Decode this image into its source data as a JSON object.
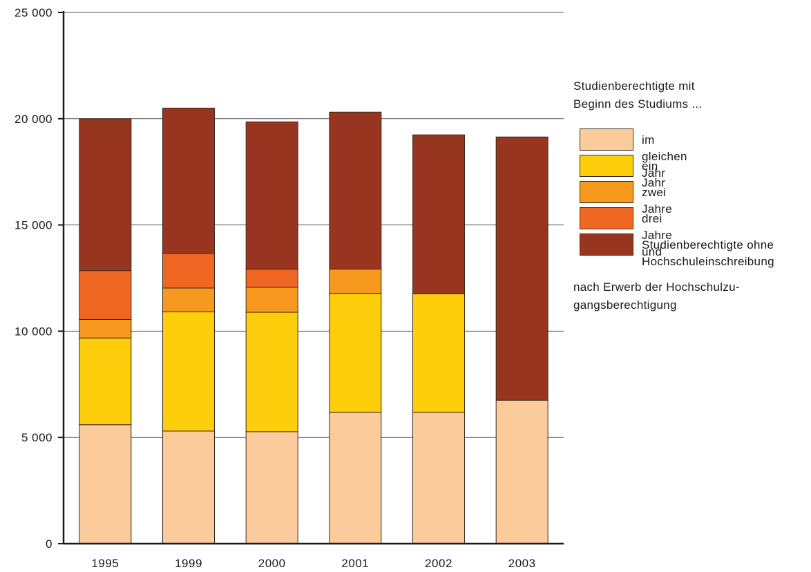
{
  "chart_data": {
    "type": "bar",
    "stacked": true,
    "categories": [
      "1995",
      "1999",
      "2000",
      "2001",
      "2002",
      "2003"
    ],
    "series": [
      {
        "name": "im gleichen Jahr",
        "color": "#fbcb9c",
        "values": [
          5600,
          5300,
          5270,
          6180,
          6180,
          6750
        ]
      },
      {
        "name": "ein Jahr",
        "color": "#fecd0b",
        "values": [
          4080,
          5610,
          5620,
          5600,
          5580,
          0
        ]
      },
      {
        "name": "zwei Jahre",
        "color": "#f6991e",
        "values": [
          870,
          1120,
          1180,
          1140,
          0,
          0
        ]
      },
      {
        "name": "drei Jahre und",
        "color": "#f06724",
        "values": [
          2300,
          1630,
          850,
          0,
          0,
          0
        ]
      },
      {
        "name": "Studienberechtigte ohne\nHochschuleinschreibung",
        "color": "#973520",
        "values": [
          7150,
          6840,
          6930,
          7390,
          7480,
          12390
        ]
      }
    ],
    "ylim": [
      0,
      25000
    ],
    "yticks": [
      0,
      5000,
      10000,
      15000,
      20000,
      25000
    ],
    "ytick_labels": [
      "0",
      "5 000",
      "10 000",
      "15 000",
      "20 000",
      "25 000"
    ],
    "grid": true,
    "legend_title": "Studienberechtigte mit\nBeginn des Studiums ...",
    "legend_note": "nach Erwerb der Hochschulzu-\ngangsberechtigung",
    "legend_position": "right"
  }
}
